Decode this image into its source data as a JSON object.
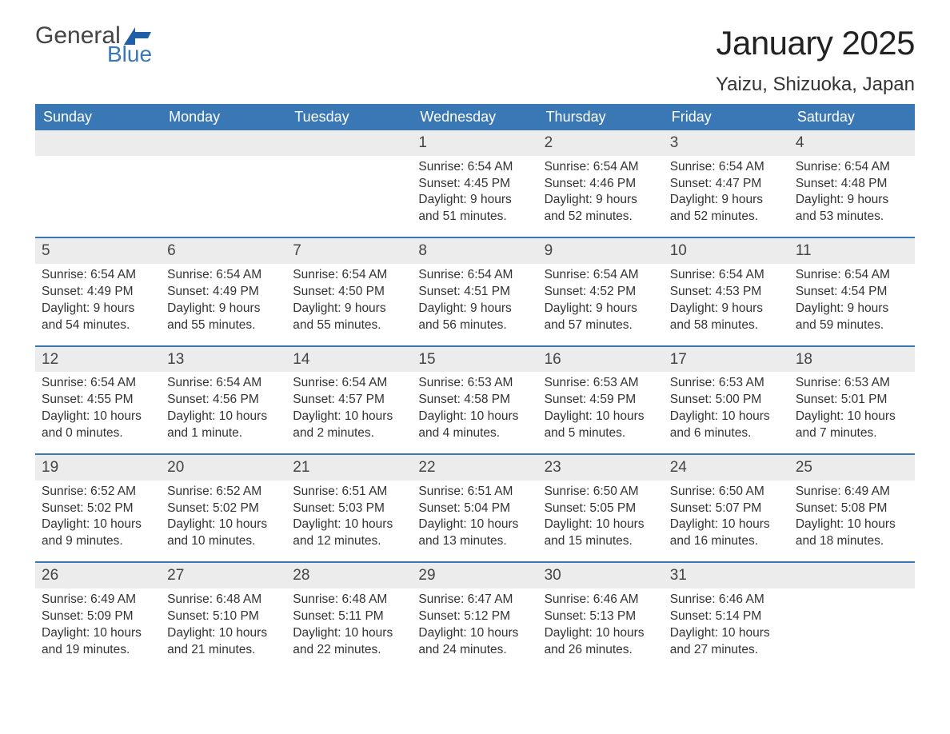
{
  "logo": {
    "word1": "General",
    "word2": "Blue",
    "text_color": "#444444",
    "blue_color": "#3a78b5",
    "flag_color": "#1f5fa6"
  },
  "title": "January 2025",
  "location": "Yaizu, Shizuoka, Japan",
  "colors": {
    "header_bg": "#3a78b5",
    "header_text": "#ffffff",
    "daynum_bg": "#ececec",
    "body_text": "#333333",
    "week_border": "#3a78b5",
    "page_bg": "#ffffff"
  },
  "weekday_headers": [
    "Sunday",
    "Monday",
    "Tuesday",
    "Wednesday",
    "Thursday",
    "Friday",
    "Saturday"
  ],
  "weeks": [
    [
      null,
      null,
      null,
      {
        "n": "1",
        "sunrise": "Sunrise: 6:54 AM",
        "sunset": "Sunset: 4:45 PM",
        "d1": "Daylight: 9 hours",
        "d2": "and 51 minutes."
      },
      {
        "n": "2",
        "sunrise": "Sunrise: 6:54 AM",
        "sunset": "Sunset: 4:46 PM",
        "d1": "Daylight: 9 hours",
        "d2": "and 52 minutes."
      },
      {
        "n": "3",
        "sunrise": "Sunrise: 6:54 AM",
        "sunset": "Sunset: 4:47 PM",
        "d1": "Daylight: 9 hours",
        "d2": "and 52 minutes."
      },
      {
        "n": "4",
        "sunrise": "Sunrise: 6:54 AM",
        "sunset": "Sunset: 4:48 PM",
        "d1": "Daylight: 9 hours",
        "d2": "and 53 minutes."
      }
    ],
    [
      {
        "n": "5",
        "sunrise": "Sunrise: 6:54 AM",
        "sunset": "Sunset: 4:49 PM",
        "d1": "Daylight: 9 hours",
        "d2": "and 54 minutes."
      },
      {
        "n": "6",
        "sunrise": "Sunrise: 6:54 AM",
        "sunset": "Sunset: 4:49 PM",
        "d1": "Daylight: 9 hours",
        "d2": "and 55 minutes."
      },
      {
        "n": "7",
        "sunrise": "Sunrise: 6:54 AM",
        "sunset": "Sunset: 4:50 PM",
        "d1": "Daylight: 9 hours",
        "d2": "and 55 minutes."
      },
      {
        "n": "8",
        "sunrise": "Sunrise: 6:54 AM",
        "sunset": "Sunset: 4:51 PM",
        "d1": "Daylight: 9 hours",
        "d2": "and 56 minutes."
      },
      {
        "n": "9",
        "sunrise": "Sunrise: 6:54 AM",
        "sunset": "Sunset: 4:52 PM",
        "d1": "Daylight: 9 hours",
        "d2": "and 57 minutes."
      },
      {
        "n": "10",
        "sunrise": "Sunrise: 6:54 AM",
        "sunset": "Sunset: 4:53 PM",
        "d1": "Daylight: 9 hours",
        "d2": "and 58 minutes."
      },
      {
        "n": "11",
        "sunrise": "Sunrise: 6:54 AM",
        "sunset": "Sunset: 4:54 PM",
        "d1": "Daylight: 9 hours",
        "d2": "and 59 minutes."
      }
    ],
    [
      {
        "n": "12",
        "sunrise": "Sunrise: 6:54 AM",
        "sunset": "Sunset: 4:55 PM",
        "d1": "Daylight: 10 hours",
        "d2": "and 0 minutes."
      },
      {
        "n": "13",
        "sunrise": "Sunrise: 6:54 AM",
        "sunset": "Sunset: 4:56 PM",
        "d1": "Daylight: 10 hours",
        "d2": "and 1 minute."
      },
      {
        "n": "14",
        "sunrise": "Sunrise: 6:54 AM",
        "sunset": "Sunset: 4:57 PM",
        "d1": "Daylight: 10 hours",
        "d2": "and 2 minutes."
      },
      {
        "n": "15",
        "sunrise": "Sunrise: 6:53 AM",
        "sunset": "Sunset: 4:58 PM",
        "d1": "Daylight: 10 hours",
        "d2": "and 4 minutes."
      },
      {
        "n": "16",
        "sunrise": "Sunrise: 6:53 AM",
        "sunset": "Sunset: 4:59 PM",
        "d1": "Daylight: 10 hours",
        "d2": "and 5 minutes."
      },
      {
        "n": "17",
        "sunrise": "Sunrise: 6:53 AM",
        "sunset": "Sunset: 5:00 PM",
        "d1": "Daylight: 10 hours",
        "d2": "and 6 minutes."
      },
      {
        "n": "18",
        "sunrise": "Sunrise: 6:53 AM",
        "sunset": "Sunset: 5:01 PM",
        "d1": "Daylight: 10 hours",
        "d2": "and 7 minutes."
      }
    ],
    [
      {
        "n": "19",
        "sunrise": "Sunrise: 6:52 AM",
        "sunset": "Sunset: 5:02 PM",
        "d1": "Daylight: 10 hours",
        "d2": "and 9 minutes."
      },
      {
        "n": "20",
        "sunrise": "Sunrise: 6:52 AM",
        "sunset": "Sunset: 5:02 PM",
        "d1": "Daylight: 10 hours",
        "d2": "and 10 minutes."
      },
      {
        "n": "21",
        "sunrise": "Sunrise: 6:51 AM",
        "sunset": "Sunset: 5:03 PM",
        "d1": "Daylight: 10 hours",
        "d2": "and 12 minutes."
      },
      {
        "n": "22",
        "sunrise": "Sunrise: 6:51 AM",
        "sunset": "Sunset: 5:04 PM",
        "d1": "Daylight: 10 hours",
        "d2": "and 13 minutes."
      },
      {
        "n": "23",
        "sunrise": "Sunrise: 6:50 AM",
        "sunset": "Sunset: 5:05 PM",
        "d1": "Daylight: 10 hours",
        "d2": "and 15 minutes."
      },
      {
        "n": "24",
        "sunrise": "Sunrise: 6:50 AM",
        "sunset": "Sunset: 5:07 PM",
        "d1": "Daylight: 10 hours",
        "d2": "and 16 minutes."
      },
      {
        "n": "25",
        "sunrise": "Sunrise: 6:49 AM",
        "sunset": "Sunset: 5:08 PM",
        "d1": "Daylight: 10 hours",
        "d2": "and 18 minutes."
      }
    ],
    [
      {
        "n": "26",
        "sunrise": "Sunrise: 6:49 AM",
        "sunset": "Sunset: 5:09 PM",
        "d1": "Daylight: 10 hours",
        "d2": "and 19 minutes."
      },
      {
        "n": "27",
        "sunrise": "Sunrise: 6:48 AM",
        "sunset": "Sunset: 5:10 PM",
        "d1": "Daylight: 10 hours",
        "d2": "and 21 minutes."
      },
      {
        "n": "28",
        "sunrise": "Sunrise: 6:48 AM",
        "sunset": "Sunset: 5:11 PM",
        "d1": "Daylight: 10 hours",
        "d2": "and 22 minutes."
      },
      {
        "n": "29",
        "sunrise": "Sunrise: 6:47 AM",
        "sunset": "Sunset: 5:12 PM",
        "d1": "Daylight: 10 hours",
        "d2": "and 24 minutes."
      },
      {
        "n": "30",
        "sunrise": "Sunrise: 6:46 AM",
        "sunset": "Sunset: 5:13 PM",
        "d1": "Daylight: 10 hours",
        "d2": "and 26 minutes."
      },
      {
        "n": "31",
        "sunrise": "Sunrise: 6:46 AM",
        "sunset": "Sunset: 5:14 PM",
        "d1": "Daylight: 10 hours",
        "d2": "and 27 minutes."
      },
      null
    ]
  ]
}
